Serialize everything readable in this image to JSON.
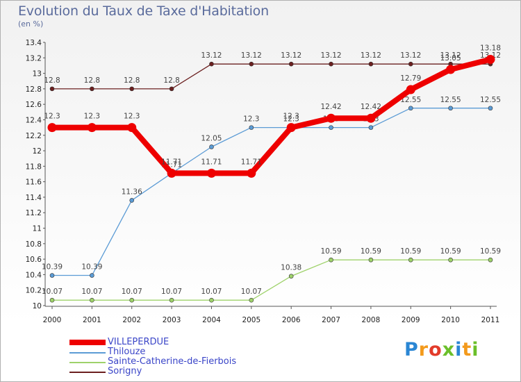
{
  "title": "Evolution du Taux de Taxe d'Habitation",
  "unit_label": "(en %)",
  "logo": {
    "text": "Proxiti",
    "colors": [
      "#2a86d4",
      "#f39a1c",
      "#e23b2a",
      "#6bbf2a",
      "#2a86d4",
      "#f39a1c",
      "#6bbf2a"
    ]
  },
  "chart_data": {
    "type": "line",
    "title": "Evolution du Taux de Taxe d'Habitation",
    "ylabel": "(en %)",
    "xlabel": "",
    "x": [
      "2000",
      "2001",
      "2002",
      "2003",
      "2004",
      "2005",
      "2006",
      "2007",
      "2008",
      "2009",
      "2010",
      "2011"
    ],
    "ylim": [
      10,
      13.4
    ],
    "yticks": [
      "10",
      "10.2",
      "10.4",
      "10.6",
      "10.8",
      "11",
      "11.2",
      "11.4",
      "11.6",
      "11.8",
      "12",
      "12.2",
      "12.4",
      "12.6",
      "12.8",
      "13",
      "13.2",
      "13.4"
    ],
    "grid": false,
    "legend_position": "bottom-left",
    "series": [
      {
        "name": "Sorigny",
        "color": "#6b1f1f",
        "style": "thin",
        "values": [
          12.8,
          12.8,
          12.8,
          12.8,
          13.12,
          13.12,
          13.12,
          13.12,
          13.12,
          13.12,
          13.12,
          13.12
        ],
        "labels": [
          "12.8",
          "12.8",
          "12.8",
          "12.8",
          "13.12",
          "13.12",
          "13.12",
          "13.12",
          "13.12",
          "13.12",
          "13.12",
          "13.12"
        ]
      },
      {
        "name": "Thilouze",
        "color": "#5b9bd5",
        "style": "thin",
        "values": [
          10.39,
          10.39,
          11.36,
          11.71,
          12.05,
          12.3,
          12.3,
          12.3,
          12.3,
          12.55,
          12.55,
          12.55
        ],
        "labels": [
          "10.39",
          "10.39",
          "11.36",
          "11.71",
          "12.05",
          "12.3",
          "12.3",
          "12.3",
          "12.3",
          "12.55",
          "12.55",
          "12.55"
        ]
      },
      {
        "name": "Sainte-Catherine-de-Fierbois",
        "color": "#9ed26a",
        "style": "thin",
        "values": [
          10.07,
          10.07,
          10.07,
          10.07,
          10.07,
          10.07,
          10.38,
          10.59,
          10.59,
          10.59,
          10.59,
          10.59
        ],
        "labels": [
          "10.07",
          "10.07",
          "10.07",
          "10.07",
          "10.07",
          "10.07",
          "10.38",
          "10.59",
          "10.59",
          "10.59",
          "10.59",
          "10.59"
        ]
      },
      {
        "name": "VILLEPERDUE",
        "color": "#ee0000",
        "style": "thick",
        "values": [
          12.3,
          12.3,
          12.3,
          11.71,
          11.71,
          11.71,
          12.3,
          12.42,
          12.42,
          12.79,
          13.05,
          13.18
        ],
        "labels": [
          "12.3",
          "12.3",
          "12.3",
          "11.71",
          "11.71",
          "11.71",
          "12.3",
          "12.42",
          "12.42",
          "12.79",
          "13.05",
          "13.18"
        ]
      }
    ]
  }
}
